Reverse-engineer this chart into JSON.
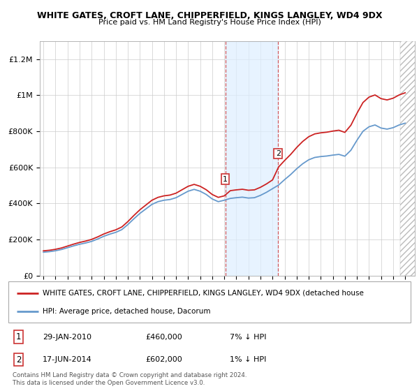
{
  "title": "WHITE GATES, CROFT LANE, CHIPPERFIELD, KINGS LANGLEY, WD4 9DX",
  "subtitle": "Price paid vs. HM Land Registry's House Price Index (HPI)",
  "ylabel_ticks": [
    "£0",
    "£200K",
    "£400K",
    "£600K",
    "£800K",
    "£1M",
    "£1.2M"
  ],
  "ytick_values": [
    0,
    200000,
    400000,
    600000,
    800000,
    1000000,
    1200000
  ],
  "ylim": [
    0,
    1300000
  ],
  "xlim_start": 1994.7,
  "xlim_end": 2025.8,
  "hpi_color": "#6699cc",
  "price_color": "#cc2222",
  "transaction1": {
    "date_label": "29-JAN-2010",
    "price": 460000,
    "hpi_diff": "7% ↓ HPI",
    "x": 2010.08,
    "marker_num": 1
  },
  "transaction2": {
    "date_label": "17-JUN-2014",
    "price": 602000,
    "hpi_diff": "1% ↓ HPI",
    "x": 2014.46,
    "marker_num": 2
  },
  "legend_line1": "WHITE GATES, CROFT LANE, CHIPPERFIELD, KINGS LANGLEY, WD4 9DX (detached house",
  "legend_line2": "HPI: Average price, detached house, Dacorum",
  "footer": "Contains HM Land Registry data © Crown copyright and database right 2024.\nThis data is licensed under the Open Government Licence v3.0.",
  "background_color": "#ffffff",
  "plot_bg_color": "#ffffff",
  "grid_color": "#cccccc",
  "shaded_region_color": "#ddeeff",
  "hatch_start": 2024.58
}
